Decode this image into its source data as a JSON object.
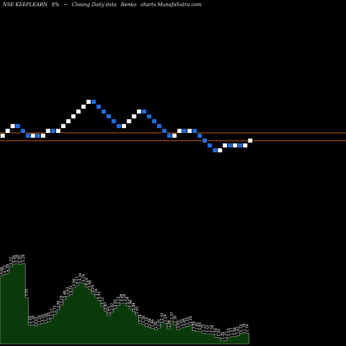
{
  "header": {
    "symbol": "NSE KEEPLEARN",
    "change": "8%",
    "arrow": "~",
    "mode": "Closing Daily data",
    "type": "Renko",
    "suffix": "charts MunafaSutra.com"
  },
  "colors": {
    "background": "#000000",
    "up_brick": "#ffffff",
    "down_brick": "#1e6fe6",
    "brick_border": "#000000",
    "ref_line": "#c8641e",
    "volume_fill": "#0a3a0a",
    "volume_line": "#b4b4b4"
  },
  "chart_data": [
    {
      "type": "renko",
      "bricks": [
        1,
        1,
        1,
        -1,
        -1,
        -1,
        1,
        -1,
        1,
        1,
        -1,
        1,
        1,
        1,
        1,
        1,
        1,
        1,
        -1,
        -1,
        -1,
        -1,
        -1,
        -1,
        1,
        1,
        1,
        1,
        -1,
        -1,
        -1,
        -1,
        -1,
        -1,
        1,
        1,
        -1,
        1,
        -1,
        -1,
        -1,
        -1,
        -1,
        1,
        1,
        -1,
        1,
        -1,
        1,
        1
      ],
      "reference_lines": [
        0,
        -1.6
      ]
    },
    {
      "type": "area",
      "values": [
        4.66,
        4.73,
        4.79,
        5.15,
        5.26,
        5.28,
        5.25,
        5.29,
        3.55,
        2.16,
        2.18,
        2.12,
        2.2,
        2.25,
        2.28,
        2.35,
        2.53,
        2.71,
        2.95,
        3.19,
        3.46,
        3.63,
        3.72,
        4.06,
        4.17,
        4.34,
        4.29,
        4.1,
        3.98,
        3.74,
        3.56,
        3.41,
        3.12,
        2.87,
        2.64,
        2.82,
        3.01,
        3.15,
        3.28,
        3.28,
        3.14,
        2.98,
        2.84,
        2.65,
        2.24,
        2.18,
        2.1,
        2.04,
        1.99,
        1.91,
        2.01,
        2.32,
        2.24,
        1.96,
        2.37,
        2.18,
        1.93,
        2.01,
        2.05,
        2.1,
        2.16,
        1.89,
        1.85,
        1.83,
        1.75,
        1.71,
        1.71,
        1.7,
        1.54,
        1.52,
        1.35,
        1.37,
        1.53,
        1.57,
        1.58,
        1.63,
        1.73,
        1.78,
        1.74
      ],
      "labels": [
        "4.66",
        "4.73",
        "4.79",
        "5.15",
        "5.26",
        "5.28",
        "5.25",
        "5.29",
        "3.55",
        "2.16",
        "2.18",
        "2.12",
        "2.20",
        "2.25",
        "2.28",
        "2.35",
        "2.53",
        "2.71",
        "2.95",
        "3.19",
        "3.46",
        "3.63",
        "3.72",
        "4.06",
        "4.17",
        "4.34",
        "4.29",
        "4.10",
        "3.98",
        "3.74",
        "3.56",
        "3.41",
        "3.12",
        "2.87",
        "2.64",
        "2.82",
        "3.01",
        "3.15",
        "3.28",
        "3.28",
        "3.14",
        "2.98",
        "2.84",
        "2.65",
        "2.24",
        "2.18",
        "2.10",
        "2.04",
        "1.99",
        "1.91",
        "2.01",
        "2.32",
        "2.24",
        "1.96",
        "2.37",
        "2.18",
        "1.93",
        "2.01",
        "2.05",
        "2.10",
        "2.16",
        "1.89",
        "1.85",
        "1.83",
        "1.75",
        "1.71",
        "1.71",
        "1.70",
        "1.54",
        "1.52",
        "1.35",
        "1.37",
        "1.53",
        "1.57",
        "1.58",
        "1.63",
        "1.73",
        "1.78",
        "1.74"
      ],
      "ylim": [
        1.2,
        5.6
      ]
    }
  ]
}
